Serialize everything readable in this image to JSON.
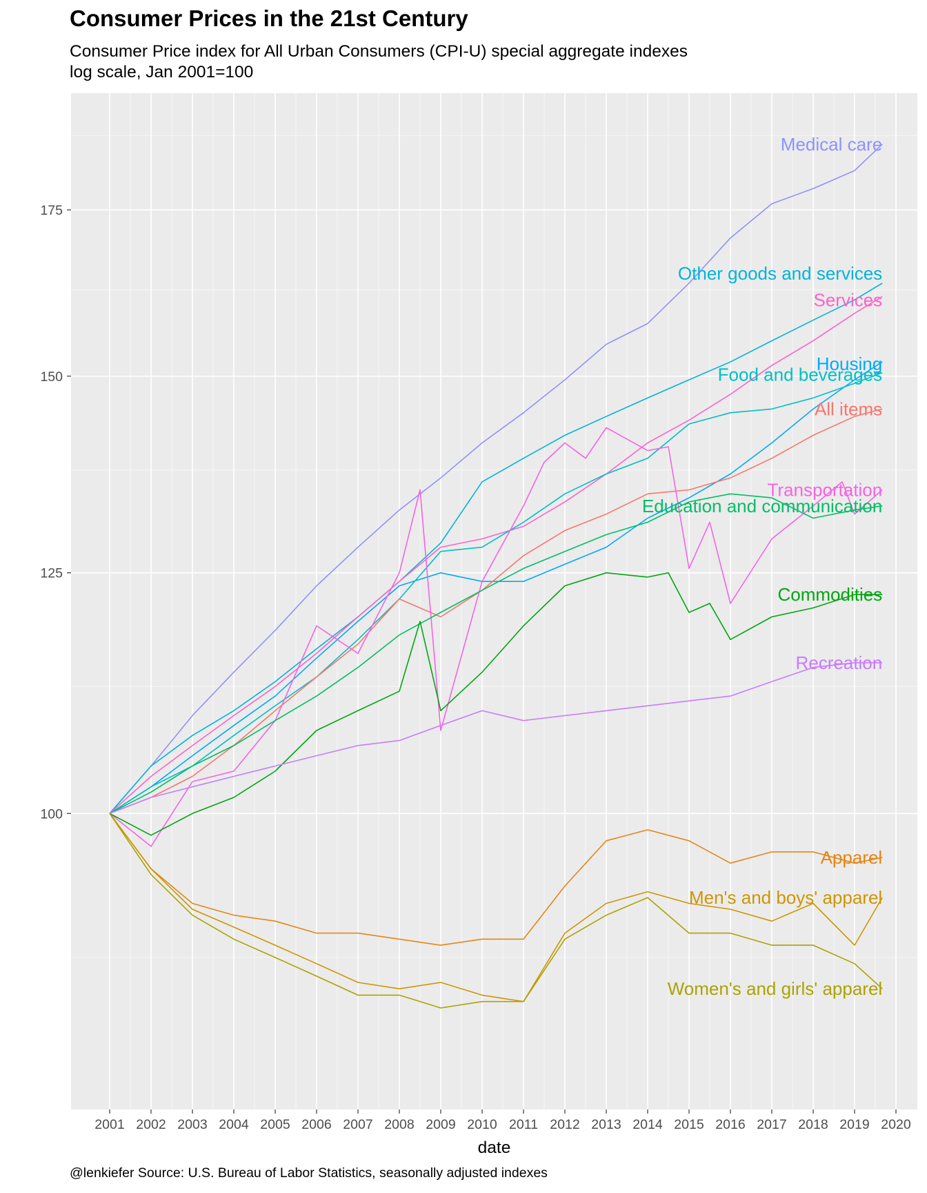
{
  "title": "Consumer Prices in the 21st Century",
  "subtitle_line1": "Consumer Price index for All Urban Consumers (CPI-U) special aggregate indexes",
  "subtitle_line2": "log scale, Jan 2001=100",
  "caption": "@lenkiefer Source: U.S. Bureau of Labor Statistics, seasonally adjusted indexes",
  "chart_data": {
    "type": "line",
    "xlabel": "date",
    "ylabel": "",
    "log_scale_y": true,
    "xlim": [
      2001,
      2020
    ],
    "ylim": [
      76,
      195
    ],
    "x_ticks": [
      "2001",
      "2002",
      "2003",
      "2004",
      "2005",
      "2006",
      "2007",
      "2008",
      "2009",
      "2010",
      "2011",
      "2012",
      "2013",
      "2014",
      "2015",
      "2016",
      "2017",
      "2018",
      "2019",
      "2020"
    ],
    "y_ticks": [
      100,
      125,
      150,
      175
    ],
    "y_tick_labels": [
      "100",
      "125",
      "150",
      "175"
    ],
    "grid": true,
    "legend": "none (direct labels at line ends)",
    "series": [
      {
        "name": "Medical care",
        "color": "#8F91FF",
        "x": [
          2001,
          2002,
          2003,
          2004,
          2005,
          2006,
          2007,
          2008,
          2009,
          2010,
          2011,
          2012,
          2013,
          2014,
          2015,
          2016,
          2017,
          2018,
          2019,
          2019.67
        ],
        "values": [
          100,
          104.5,
          109.5,
          114,
          118.5,
          123.5,
          128,
          132.5,
          136.5,
          141,
          145,
          149.5,
          154.5,
          157.5,
          163.5,
          170.5,
          176,
          178.5,
          181.5,
          186
        ]
      },
      {
        "name": "Other goods and services",
        "color": "#00B4D8",
        "x": [
          2001,
          2002,
          2003,
          2004,
          2005,
          2006,
          2007,
          2008,
          2009,
          2010,
          2011,
          2012,
          2013,
          2014,
          2015,
          2016,
          2017,
          2018,
          2019,
          2019.67
        ],
        "values": [
          100,
          104.5,
          107.5,
          110,
          113,
          116.5,
          120,
          124,
          128.5,
          136,
          139,
          142,
          144.5,
          147,
          149.5,
          152,
          155,
          158,
          161,
          163.5
        ]
      },
      {
        "name": "Services",
        "color": "#FF61C9",
        "x": [
          2001,
          2002,
          2003,
          2004,
          2005,
          2006,
          2007,
          2008,
          2009,
          2010,
          2011,
          2012,
          2013,
          2014,
          2015,
          2016,
          2017,
          2018,
          2019,
          2019.67
        ],
        "values": [
          100,
          103.5,
          106.5,
          109.5,
          112.5,
          116,
          120,
          124,
          128,
          129,
          130.5,
          133.5,
          137,
          141,
          144,
          147.5,
          151.5,
          155,
          159,
          161.5
        ]
      },
      {
        "name": "Housing",
        "color": "#00A9FF",
        "x": [
          2001,
          2002,
          2003,
          2004,
          2005,
          2006,
          2007,
          2008,
          2009,
          2010,
          2011,
          2012,
          2013,
          2014,
          2015,
          2016,
          2017,
          2018,
          2019,
          2019.67
        ],
        "values": [
          100,
          102.5,
          105.5,
          108.5,
          111.5,
          115.5,
          119.5,
          123.5,
          125,
          124,
          124,
          126,
          128,
          131.5,
          134,
          137,
          141,
          145.5,
          149.5,
          152
        ]
      },
      {
        "name": "Food and beverages",
        "color": "#00BFC4",
        "x": [
          2001,
          2002,
          2003,
          2004,
          2005,
          2006,
          2007,
          2008,
          2009,
          2010,
          2011,
          2012,
          2013,
          2014,
          2015,
          2016,
          2017,
          2018,
          2019,
          2019.67
        ],
        "values": [
          100,
          102.5,
          104.5,
          107.5,
          110.5,
          113.5,
          117.5,
          122,
          127.5,
          128,
          131,
          134.5,
          137,
          139,
          143.5,
          145,
          145.5,
          147,
          149,
          150.5
        ]
      },
      {
        "name": "All items",
        "color": "#F8766D",
        "x": [
          2001,
          2002,
          2003,
          2004,
          2005,
          2006,
          2007,
          2008,
          2009,
          2010,
          2011,
          2012,
          2013,
          2014,
          2015,
          2016,
          2017,
          2018,
          2019,
          2019.67
        ],
        "values": [
          100,
          101.5,
          103.5,
          106.5,
          110,
          113.5,
          117,
          122,
          120,
          123,
          127,
          130,
          132,
          134.5,
          135,
          136.5,
          139,
          142,
          144.5,
          145.5
        ]
      },
      {
        "name": "Transportation",
        "color": "#F564E3",
        "x": [
          2001,
          2002,
          2003,
          2004,
          2005,
          2006,
          2007,
          2008,
          2008.5,
          2009,
          2010,
          2011,
          2011.5,
          2012,
          2012.5,
          2013,
          2014,
          2014.5,
          2015,
          2015.5,
          2016,
          2017,
          2018,
          2018.7,
          2019,
          2019.67
        ],
        "values": [
          100,
          97,
          103,
          104,
          109,
          119,
          116,
          125,
          135,
          108,
          124,
          133,
          138.5,
          141,
          139,
          143,
          140,
          140.5,
          125.5,
          131,
          121.5,
          129,
          133,
          136,
          132,
          135
        ]
      },
      {
        "name": "Education and communication",
        "color": "#00BE67",
        "x": [
          2001,
          2002,
          2003,
          2004,
          2005,
          2006,
          2007,
          2008,
          2009,
          2010,
          2011,
          2012,
          2013,
          2014,
          2015,
          2016,
          2017,
          2018,
          2019,
          2019.67
        ],
        "values": [
          100,
          102,
          104.5,
          106.5,
          109,
          111.5,
          114.5,
          118,
          120.5,
          123,
          125.5,
          127.5,
          129.5,
          131,
          133.5,
          134.5,
          134,
          131.5,
          132.5,
          133
        ]
      },
      {
        "name": "Commodities",
        "color": "#00A611",
        "x": [
          2001,
          2002,
          2003,
          2004,
          2005,
          2006,
          2007,
          2008,
          2008.5,
          2009,
          2010,
          2011,
          2012,
          2013,
          2014,
          2014.5,
          2015,
          2015.5,
          2016,
          2017,
          2018,
          2019,
          2019.67
        ],
        "values": [
          100,
          98,
          100,
          101.5,
          104,
          108,
          110,
          112,
          119.5,
          110,
          114,
          119,
          123.5,
          125,
          124.5,
          125,
          120.5,
          121.5,
          117.5,
          120,
          121,
          122.5,
          122.5
        ]
      },
      {
        "name": "Recreation",
        "color": "#C77CFF",
        "x": [
          2001,
          2002,
          2003,
          2004,
          2005,
          2006,
          2007,
          2008,
          2009,
          2010,
          2011,
          2012,
          2013,
          2014,
          2015,
          2016,
          2017,
          2018,
          2019,
          2019.67
        ],
        "values": [
          100,
          101.5,
          102.5,
          103.5,
          104.5,
          105.5,
          106.5,
          107,
          108.5,
          110,
          109,
          109.5,
          110,
          110.5,
          111,
          111.5,
          113,
          114.5,
          115,
          115
        ]
      },
      {
        "name": "Apparel",
        "color": "#E68613",
        "x": [
          2001,
          2002,
          2003,
          2004,
          2005,
          2006,
          2007,
          2008,
          2009,
          2010,
          2011,
          2012,
          2013,
          2014,
          2015,
          2016,
          2017,
          2018,
          2019,
          2019.67
        ],
        "values": [
          100,
          95,
          92,
          91,
          90.5,
          89.5,
          89.5,
          89,
          88.5,
          89,
          89,
          93.5,
          97.5,
          98.5,
          97.5,
          95.5,
          96.5,
          96.5,
          95.5,
          96
        ]
      },
      {
        "name": "Men's and boys' apparel",
        "color": "#CD9600",
        "x": [
          2001,
          2002,
          2003,
          2004,
          2005,
          2006,
          2007,
          2008,
          2009,
          2010,
          2011,
          2012,
          2013,
          2014,
          2015,
          2016,
          2017,
          2018,
          2019,
          2019.67
        ],
        "values": [
          100,
          95,
          91.5,
          90,
          88.5,
          87,
          85.5,
          85,
          85.5,
          84.5,
          84,
          89.5,
          92,
          93,
          92,
          91.5,
          90.5,
          92,
          88.5,
          92.5
        ]
      },
      {
        "name": "Women's and girls' apparel",
        "color": "#ABA300",
        "x": [
          2001,
          2002,
          2003,
          2004,
          2005,
          2006,
          2007,
          2008,
          2009,
          2010,
          2011,
          2012,
          2013,
          2014,
          2015,
          2016,
          2017,
          2018,
          2019,
          2019.67
        ],
        "values": [
          100,
          94.5,
          91,
          89,
          87.5,
          86,
          84.5,
          84.5,
          83.5,
          84,
          84,
          89,
          91,
          92.5,
          89.5,
          89.5,
          88.5,
          88.5,
          87,
          85
        ]
      }
    ]
  }
}
